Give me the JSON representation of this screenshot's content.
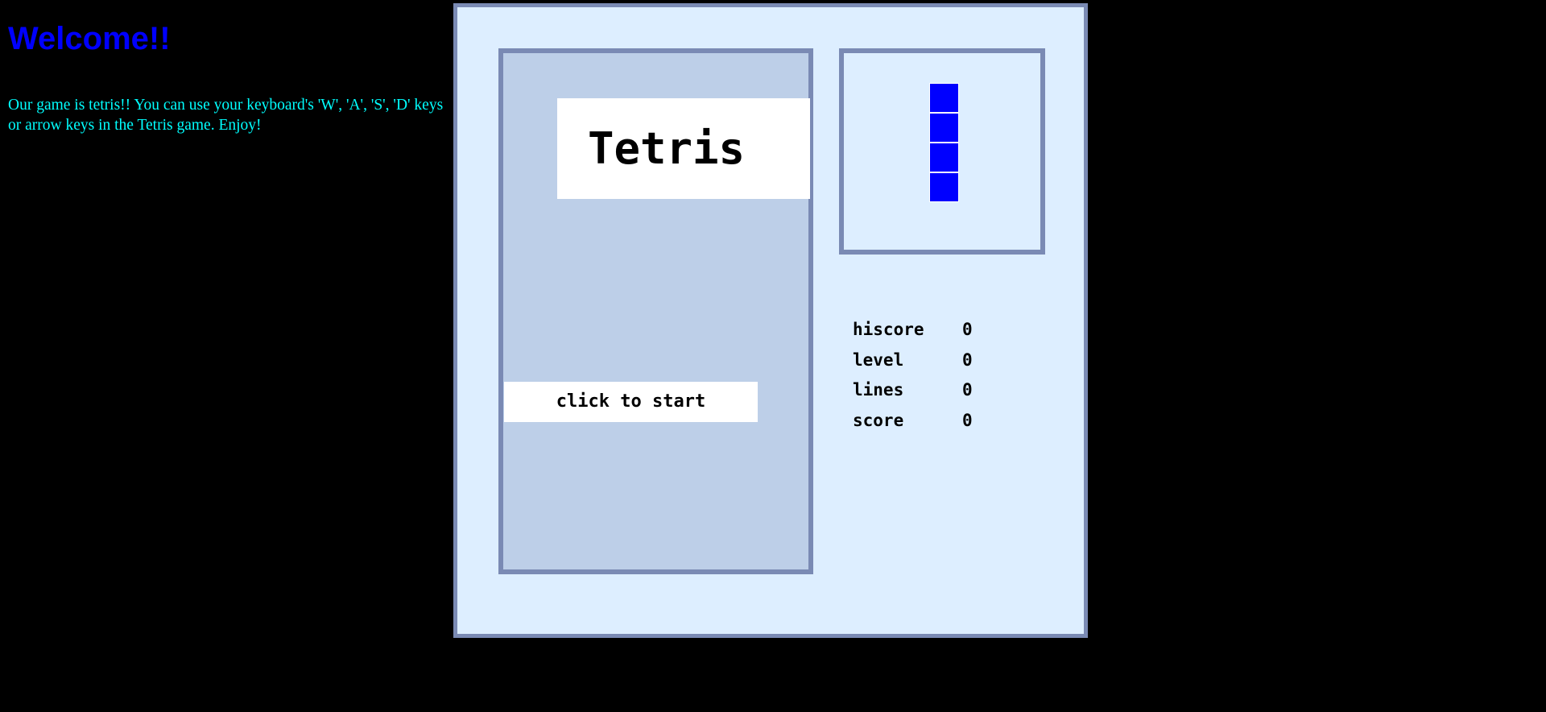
{
  "intro": {
    "heading": "Welcome!!",
    "description": "Our game is tetris!! You can use your keyboard's 'W', 'A', 'S', 'D' keys or arrow keys in the Tetris game. Enjoy!"
  },
  "game": {
    "title": "Tetris",
    "start_label": "click to start",
    "next_piece": {
      "shape": "I",
      "orientation": "vertical",
      "cells": 4,
      "color": "#0000ff"
    },
    "stats": [
      {
        "label": "hiscore",
        "value": "0"
      },
      {
        "label": "level",
        "value": "0"
      },
      {
        "label": "lines",
        "value": "0"
      },
      {
        "label": "score",
        "value": "0"
      }
    ]
  },
  "colors": {
    "background": "#000000",
    "heading": "#0000ff",
    "description": "#00ffff",
    "frame_border": "#7a8ab4",
    "frame_fill": "#ddeeff",
    "playfield_fill": "#bdcfe8",
    "piece": "#0000ff"
  }
}
